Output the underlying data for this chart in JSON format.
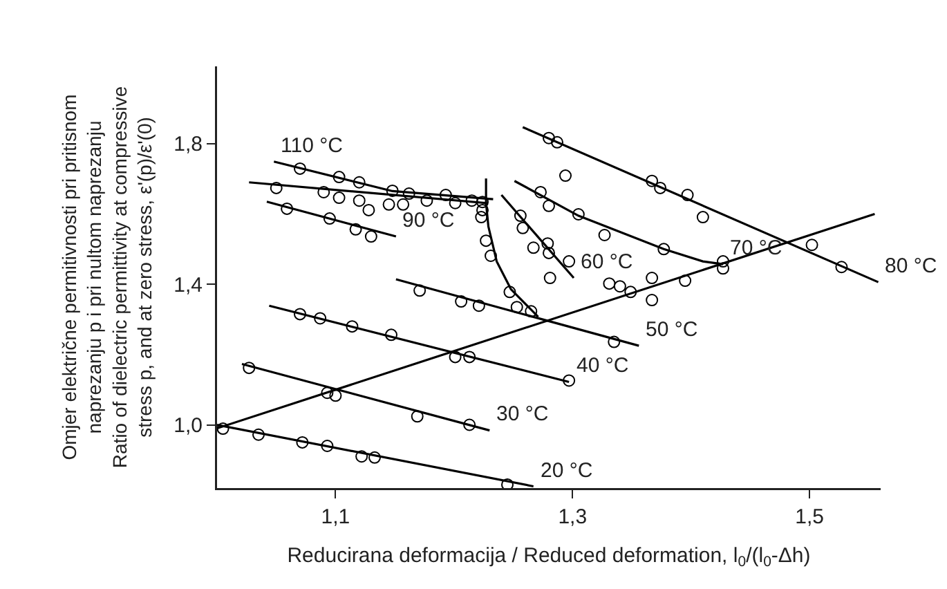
{
  "chart_data": {
    "type": "scatter",
    "xlabel": "Reducirana deformacija / Reduced deformation, l$_{0}$/(l$_{0}$-Δh)",
    "ylabel": "Omjer električne permitivnosti pri pritisnom\nnaprezanju p i pri nultom naprezanju\nRatio of dielectric permittivity at compressive\nstress p, and at zero stress, ε'(p)/ε'(0)",
    "xlim": [
      1.0,
      1.56
    ],
    "ylim": [
      0.82,
      2.02
    ],
    "xticks": [
      {
        "value": 1.1,
        "label": "1,1"
      },
      {
        "value": 1.3,
        "label": "1,3"
      },
      {
        "value": 1.5,
        "label": "1,5"
      }
    ],
    "yticks": [
      {
        "value": 1.0,
        "label": "1,0"
      },
      {
        "value": 1.4,
        "label": "1,4"
      },
      {
        "value": 1.8,
        "label": "1,8"
      }
    ],
    "grid": false,
    "line_style": "solid",
    "series": [
      {
        "type": "line",
        "marker": "none",
        "color": "#000000",
        "x": [
          1.0,
          1.267
        ],
        "values": [
          1.0,
          0.825
        ]
      },
      {
        "marker": "circle",
        "color": "#000000",
        "x": [
          1.005,
          1.035,
          1.072,
          1.093,
          1.122,
          1.133,
          1.245
        ],
        "values": [
          0.989,
          0.972,
          0.95,
          0.94,
          0.91,
          0.907,
          0.83
        ]
      },
      {
        "type": "line",
        "marker": "none",
        "color": "#000000",
        "x": [
          1.021,
          1.23
        ],
        "values": [
          1.173,
          0.984
        ]
      },
      {
        "marker": "circle",
        "color": "#000000",
        "x": [
          1.027,
          1.093,
          1.1,
          1.169,
          1.213
        ],
        "values": [
          1.162,
          1.091,
          1.083,
          1.024,
          1.0
        ]
      },
      {
        "type": "line",
        "marker": "none",
        "color": "#000000",
        "x": [
          1.044,
          1.297
        ],
        "values": [
          1.339,
          1.122
        ]
      },
      {
        "marker": "circle",
        "color": "#000000",
        "x": [
          1.07,
          1.087,
          1.114,
          1.147,
          1.201,
          1.213,
          1.297
        ],
        "values": [
          1.315,
          1.303,
          1.28,
          1.256,
          1.193,
          1.193,
          1.126
        ]
      },
      {
        "type": "line",
        "marker": "none",
        "color": "#000000",
        "x": [
          1.151,
          1.356
        ],
        "values": [
          1.414,
          1.225
        ]
      },
      {
        "marker": "circle",
        "color": "#000000",
        "x": [
          1.171,
          1.206,
          1.221,
          1.335
        ],
        "values": [
          1.382,
          1.351,
          1.339,
          1.236
        ]
      },
      {
        "type": "line",
        "marker": "none",
        "color": "#000000",
        "x": [
          1.24,
          1.301
        ],
        "values": [
          1.654,
          1.418
        ]
      },
      {
        "marker": "circle",
        "color": "#000000",
        "x": [
          1.256,
          1.258,
          1.267,
          1.279,
          1.28,
          1.297,
          1.281
        ],
        "values": [
          1.595,
          1.56,
          1.504,
          1.516,
          1.489,
          1.465,
          1.418
        ]
      },
      {
        "type": "line",
        "marker": "none",
        "color": "#000000",
        "x": [
          1.251,
          1.305,
          1.377,
          1.41,
          1.427
        ],
        "values": [
          1.694,
          1.595,
          1.5,
          1.465,
          1.457
        ]
      },
      {
        "marker": "circle",
        "color": "#000000",
        "x": [
          1.273,
          1.28,
          1.305,
          1.327,
          1.377,
          1.427,
          1.427,
          1.294,
          1.331,
          1.34,
          1.349,
          1.367,
          1.367,
          1.395
        ],
        "values": [
          1.662,
          1.623,
          1.599,
          1.54,
          1.5,
          1.465,
          1.445,
          1.709,
          1.402,
          1.394,
          1.378,
          1.418,
          1.355,
          1.41
        ]
      },
      {
        "type": "line",
        "marker": "none",
        "color": "#000000",
        "x": [
          1.258,
          1.558
        ],
        "values": [
          1.847,
          1.406
        ]
      },
      {
        "marker": "circle",
        "color": "#000000",
        "x": [
          1.28,
          1.287,
          1.367,
          1.374,
          1.397,
          1.41,
          1.502,
          1.527
        ],
        "values": [
          1.816,
          1.804,
          1.694,
          1.674,
          1.654,
          1.591,
          1.512,
          1.449
        ]
      },
      {
        "type": "line",
        "marker": "none",
        "color": "#000000",
        "x": [
          1.042,
          1.151
        ],
        "values": [
          1.635,
          1.536
        ]
      },
      {
        "marker": "circle",
        "color": "#000000",
        "x": [
          1.059,
          1.095,
          1.117,
          1.13
        ],
        "values": [
          1.615,
          1.587,
          1.556,
          1.536
        ]
      },
      {
        "type": "line",
        "marker": "none",
        "color": "#000000",
        "x": [
          1.048,
          1.148,
          1.233
        ],
        "values": [
          1.749,
          1.665,
          1.642
        ]
      },
      {
        "marker": "circle",
        "color": "#000000",
        "x": [
          1.07,
          1.103,
          1.12,
          1.148,
          1.162,
          1.193,
          1.215
        ],
        "values": [
          1.729,
          1.705,
          1.69,
          1.666,
          1.658,
          1.654,
          1.638
        ]
      },
      {
        "type": "line",
        "marker": "none",
        "color": "#000000",
        "x": [
          1.027,
          1.227,
          1.229,
          1.236,
          1.248,
          1.271
        ],
        "values": [
          1.69,
          1.631,
          1.564,
          1.465,
          1.386,
          1.307
        ]
      },
      {
        "marker": "circle",
        "color": "#000000",
        "x": [
          1.05,
          1.09,
          1.103,
          1.12,
          1.128,
          1.145,
          1.157,
          1.177,
          1.201,
          1.224,
          1.224,
          1.223,
          1.227,
          1.231,
          1.247,
          1.253,
          1.265
        ],
        "values": [
          1.674,
          1.662,
          1.646,
          1.638,
          1.611,
          1.627,
          1.627,
          1.638,
          1.631,
          1.634,
          1.611,
          1.591,
          1.524,
          1.481,
          1.378,
          1.335,
          1.323
        ]
      },
      {
        "type": "line",
        "marker": "none",
        "color": "#000000",
        "x": [
          1.227,
          1.227
        ],
        "values": [
          1.701,
          1.623
        ]
      },
      {
        "type": "line",
        "marker": "none",
        "color": "#000000",
        "x": [
          1.0,
          1.555
        ],
        "values": [
          0.99,
          1.6
        ]
      }
    ],
    "annotations": [
      {
        "text": "20 °C",
        "x": 1.267,
        "y": 0.825
      },
      {
        "text": "30 °C",
        "x": 1.23,
        "y": 0.984
      },
      {
        "text": "40 °C",
        "x": 1.297,
        "y": 1.122
      },
      {
        "text": "50 °C",
        "x": 1.356,
        "y": 1.225
      },
      {
        "text": "60 °C",
        "x": 1.301,
        "y": 1.418
      },
      {
        "text": "70 °C",
        "x": 1.427,
        "y": 1.457
      },
      {
        "text": "80 °C",
        "x": 1.558,
        "y": 1.406
      },
      {
        "text": "90 °C",
        "x": 1.151,
        "y": 1.536
      },
      {
        "text": "110 °C",
        "x": 1.048,
        "y": 1.749
      }
    ]
  }
}
